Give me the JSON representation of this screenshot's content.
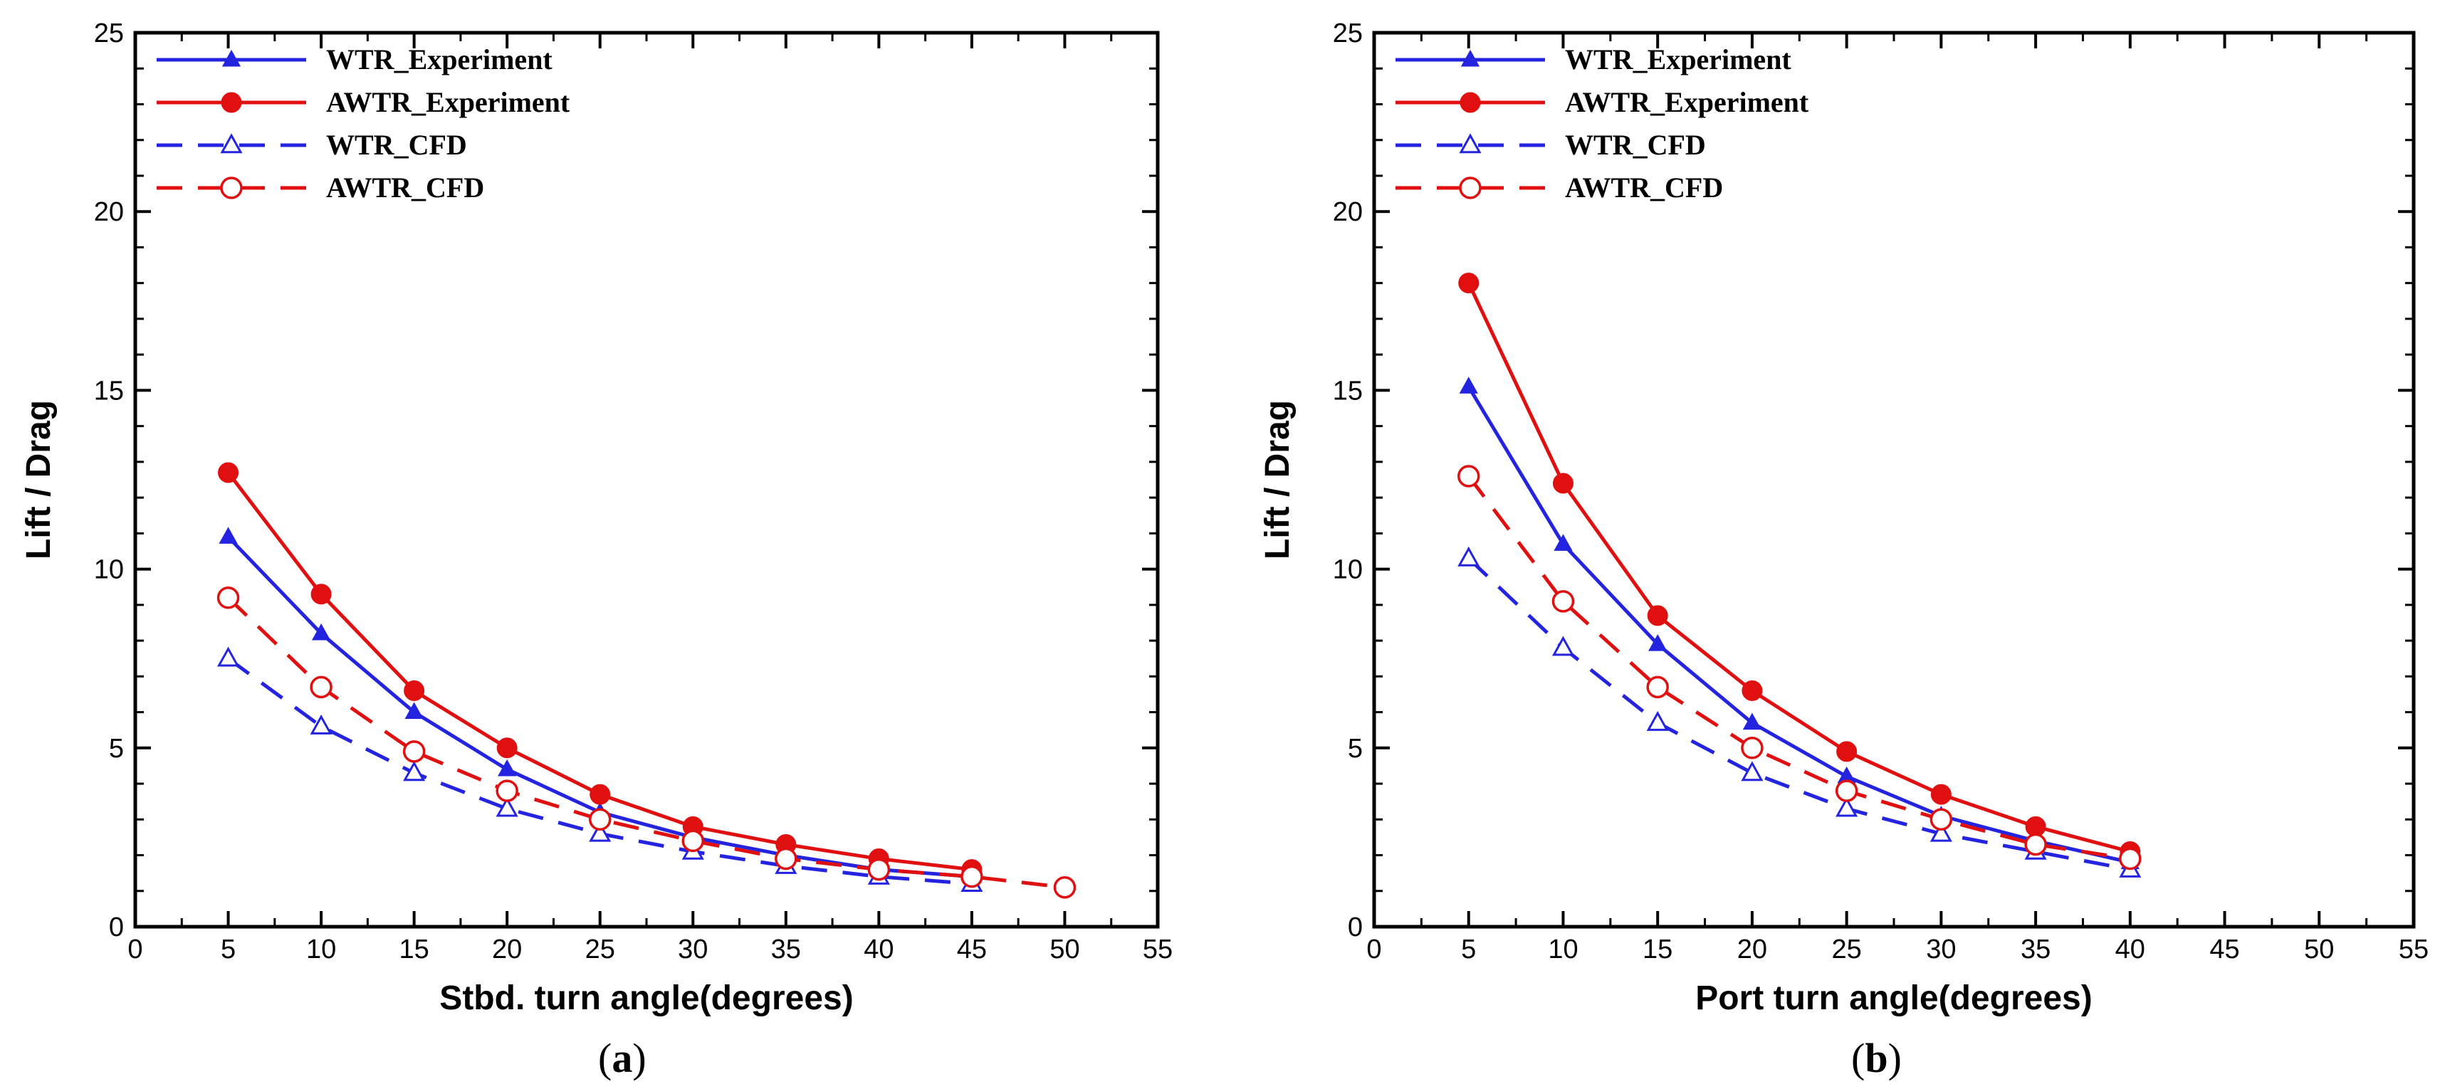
{
  "chart_data": [
    {
      "type": "line",
      "panel_label": "a",
      "title": "",
      "xlabel": "Stbd. turn angle(degrees)",
      "ylabel": "Lift / Drag",
      "xlim": [
        0,
        55
      ],
      "ylim": [
        0,
        25
      ],
      "xticks": [
        0,
        5,
        10,
        15,
        20,
        25,
        30,
        35,
        40,
        45,
        50,
        55
      ],
      "yticks": [
        0,
        5,
        10,
        15,
        20,
        25
      ],
      "legend_position": "top-left",
      "series": [
        {
          "name": "WTR_Experiment",
          "color": "#2424e0",
          "style": "solid",
          "marker": "filled-triangle",
          "x": [
            5,
            10,
            15,
            20,
            25,
            30,
            35,
            40,
            45
          ],
          "y": [
            10.9,
            8.2,
            6.0,
            4.4,
            3.2,
            2.5,
            2.0,
            1.6,
            1.4
          ]
        },
        {
          "name": "AWTR_Experiment",
          "color": "#e01010",
          "style": "solid",
          "marker": "filled-circle",
          "x": [
            5,
            10,
            15,
            20,
            25,
            30,
            35,
            40,
            45
          ],
          "y": [
            12.7,
            9.3,
            6.6,
            5.0,
            3.7,
            2.8,
            2.3,
            1.9,
            1.6
          ]
        },
        {
          "name": "WTR_CFD",
          "color": "#2424e0",
          "style": "dashed",
          "marker": "open-triangle",
          "x": [
            5,
            10,
            15,
            20,
            25,
            30,
            35,
            40,
            45
          ],
          "y": [
            7.5,
            5.6,
            4.3,
            3.3,
            2.6,
            2.1,
            1.7,
            1.4,
            1.2
          ]
        },
        {
          "name": "AWTR_CFD",
          "color": "#e01010",
          "style": "dashed",
          "marker": "open-circle",
          "x": [
            5,
            10,
            15,
            20,
            25,
            30,
            35,
            40,
            45,
            50
          ],
          "y": [
            9.2,
            6.7,
            4.9,
            3.8,
            3.0,
            2.4,
            1.9,
            1.6,
            1.4,
            1.1
          ]
        }
      ]
    },
    {
      "type": "line",
      "panel_label": "b",
      "title": "",
      "xlabel": "Port turn angle(degrees)",
      "ylabel": "Lift / Drag",
      "xlim": [
        0,
        55
      ],
      "ylim": [
        0,
        25
      ],
      "xticks": [
        0,
        5,
        10,
        15,
        20,
        25,
        30,
        35,
        40,
        45,
        50,
        55
      ],
      "yticks": [
        0,
        5,
        10,
        15,
        20,
        25
      ],
      "legend_position": "top-left",
      "series": [
        {
          "name": "WTR_Experiment",
          "color": "#2424e0",
          "style": "solid",
          "marker": "filled-triangle",
          "x": [
            5,
            10,
            15,
            20,
            25,
            30,
            35,
            40
          ],
          "y": [
            15.1,
            10.7,
            7.9,
            5.7,
            4.2,
            3.1,
            2.4,
            1.8
          ]
        },
        {
          "name": "AWTR_Experiment",
          "color": "#e01010",
          "style": "solid",
          "marker": "filled-circle",
          "x": [
            5,
            10,
            15,
            20,
            25,
            30,
            35,
            40
          ],
          "y": [
            18.0,
            12.4,
            8.7,
            6.6,
            4.9,
            3.7,
            2.8,
            2.1
          ]
        },
        {
          "name": "WTR_CFD",
          "color": "#2424e0",
          "style": "dashed",
          "marker": "open-triangle",
          "x": [
            5,
            10,
            15,
            20,
            25,
            30,
            35,
            40
          ],
          "y": [
            10.3,
            7.8,
            5.7,
            4.3,
            3.3,
            2.6,
            2.1,
            1.6
          ]
        },
        {
          "name": "AWTR_CFD",
          "color": "#e01010",
          "style": "dashed",
          "marker": "open-circle",
          "x": [
            5,
            10,
            15,
            20,
            25,
            30,
            35,
            40
          ],
          "y": [
            12.6,
            9.1,
            6.7,
            5.0,
            3.8,
            3.0,
            2.3,
            1.9
          ]
        }
      ]
    }
  ]
}
